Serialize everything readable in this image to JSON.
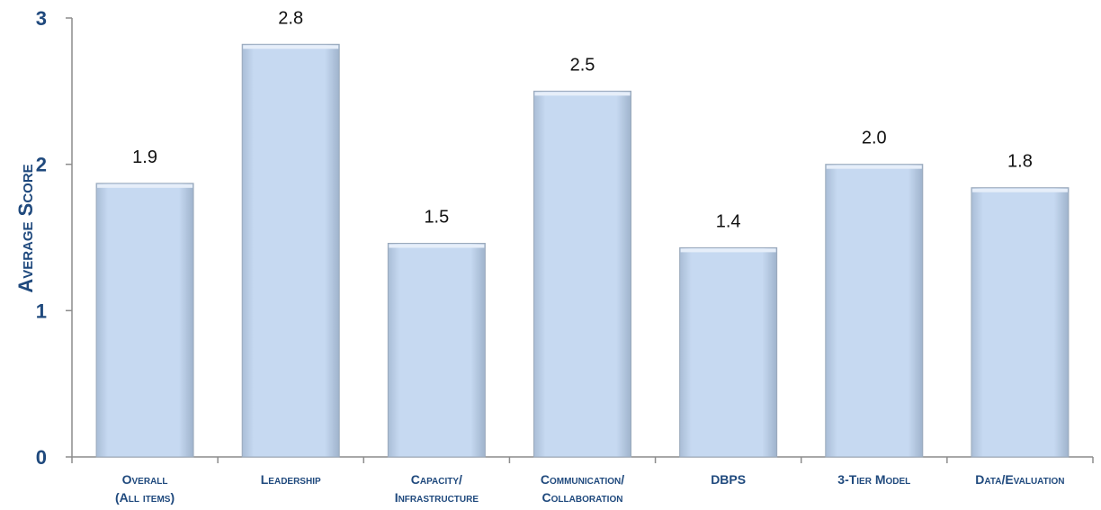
{
  "chart_data": {
    "type": "bar",
    "ylabel": "Average Score",
    "xlabel": "",
    "ylim": [
      0,
      3
    ],
    "yticks": [
      0,
      1,
      2,
      3
    ],
    "categories": [
      [
        "Overall",
        "(All items)"
      ],
      [
        "Leadership"
      ],
      [
        "Capacity/",
        "Infrastructure"
      ],
      [
        "Communication/",
        "Collaboration"
      ],
      [
        "DBPS"
      ],
      [
        "3-Tier Model"
      ],
      [
        "Data/Evaluation"
      ]
    ],
    "values": [
      1.87,
      2.82,
      1.46,
      2.5,
      1.43,
      2.0,
      1.84
    ],
    "data_labels": [
      "1.9",
      "2.8",
      "1.5",
      "2.5",
      "1.4",
      "2.0",
      "1.8"
    ],
    "grid": false,
    "legend": "none",
    "colors": {
      "bar_fill": "#c6d9f1",
      "bar_stroke": "#9aa9bb",
      "axis": "#8c8c8c",
      "label_text": "#1f497d"
    }
  }
}
